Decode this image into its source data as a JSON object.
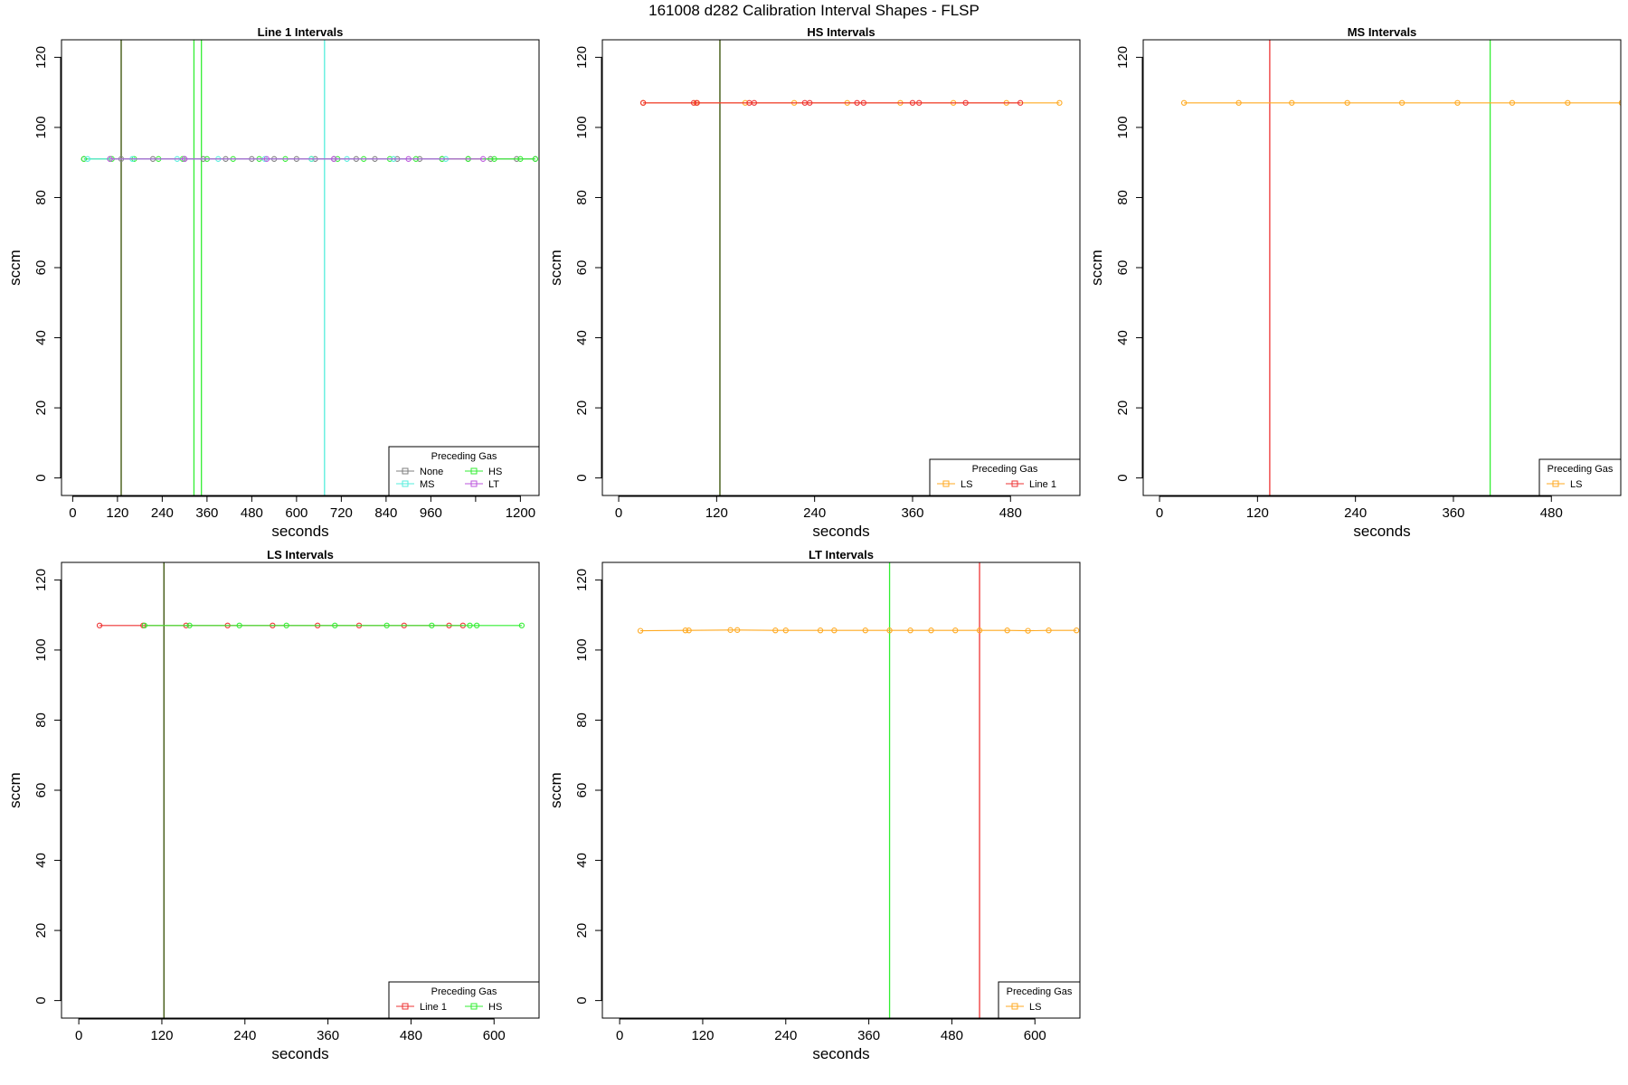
{
  "page": {
    "title": "161008   d282   Calibration Interval Shapes - FLSP"
  },
  "legend_title": "Preceding Gas",
  "colors": {
    "None": "#7f7f7f",
    "HS": "#33ee33",
    "MS": "#55eedd",
    "LT": "#bb55dd",
    "LS": "#ffaa22",
    "Line 1": "#ee3333",
    "dark_vline": "#334d00"
  },
  "chart_data": [
    {
      "type": "line",
      "title": "Line 1 Intervals",
      "xlabel": "seconds",
      "ylabel": "sccm",
      "xlim": [
        -30,
        1250
      ],
      "ylim": [
        -5,
        125
      ],
      "xticks": [
        0,
        120,
        240,
        360,
        480,
        600,
        720,
        840,
        960,
        1080,
        1200
      ],
      "xtick_labels": [
        "0",
        "120",
        "240",
        "360",
        "480",
        "600",
        "720",
        "840",
        "960",
        "",
        "1200"
      ],
      "yticks": [
        0,
        20,
        40,
        60,
        80,
        100,
        120
      ],
      "legend": {
        "entries": [
          "None",
          "HS",
          "MS",
          "LT"
        ],
        "columns": 2
      },
      "vlines": [
        {
          "x": 130,
          "color": "dark_vline"
        },
        {
          "x": 325,
          "color": "HS"
        },
        {
          "x": 345,
          "color": "HS"
        },
        {
          "x": 675,
          "color": "MS"
        }
      ],
      "series": [
        {
          "name": "None",
          "x": [
            30,
            100,
            130,
            215,
            300,
            350,
            410,
            480,
            540,
            600,
            650,
            700,
            760,
            810,
            870,
            930,
            990,
            1060,
            1120,
            1190,
            1240
          ],
          "y": [
            91,
            91,
            91,
            91,
            91,
            91,
            91,
            91,
            91,
            91,
            91,
            91,
            91,
            91,
            91,
            91,
            91,
            91,
            91,
            91,
            91
          ]
        },
        {
          "name": "HS",
          "x": [
            30,
            105,
            165,
            230,
            295,
            360,
            430,
            500,
            570,
            640,
            710,
            780,
            850,
            920,
            990,
            1060,
            1130,
            1200,
            1240
          ],
          "y": [
            91,
            91,
            91,
            91,
            91,
            91,
            91,
            91,
            91,
            91,
            91,
            91,
            91,
            91,
            91,
            91,
            91,
            91,
            91
          ]
        },
        {
          "name": "MS",
          "x": [
            40,
            160,
            280,
            390,
            515,
            640,
            735,
            860,
            1000
          ],
          "y": [
            91,
            91,
            91,
            91,
            91,
            91,
            91,
            91,
            91
          ]
        },
        {
          "name": "LT",
          "x": [
            100,
            300,
            520,
            700,
            900,
            1100
          ],
          "y": [
            91,
            91,
            91,
            91,
            91,
            91
          ]
        }
      ]
    },
    {
      "type": "line",
      "title": "HS Intervals",
      "xlabel": "seconds",
      "ylabel": "sccm",
      "xlim": [
        -20,
        565
      ],
      "ylim": [
        -5,
        125
      ],
      "xticks": [
        0,
        120,
        240,
        360,
        480
      ],
      "xtick_labels": [
        "0",
        "120",
        "240",
        "360",
        "480"
      ],
      "yticks": [
        0,
        20,
        40,
        60,
        80,
        100,
        120
      ],
      "legend": {
        "entries": [
          "LS",
          "Line 1"
        ],
        "columns": 2
      },
      "vlines": [
        {
          "x": 124,
          "color": "dark_vline"
        }
      ],
      "series": [
        {
          "name": "LS",
          "x": [
            30,
            95,
            155,
            215,
            280,
            345,
            410,
            475,
            540
          ],
          "y": [
            107,
            107,
            107,
            107,
            107,
            107,
            107,
            107,
            107
          ]
        },
        {
          "name": "Line 1",
          "x": [
            30,
            92,
            96,
            160,
            166,
            228,
            234,
            292,
            300,
            360,
            368,
            425,
            492
          ],
          "y": [
            107,
            107,
            107,
            107,
            107,
            107,
            107,
            107,
            107,
            107,
            107,
            107,
            107
          ]
        }
      ]
    },
    {
      "type": "line",
      "title": "MS Intervals",
      "xlabel": "seconds",
      "ylabel": "sccm",
      "xlim": [
        -20,
        565
      ],
      "ylim": [
        -5,
        125
      ],
      "xticks": [
        0,
        120,
        240,
        360,
        480
      ],
      "xtick_labels": [
        "0",
        "120",
        "240",
        "360",
        "480"
      ],
      "yticks": [
        0,
        20,
        40,
        60,
        80,
        100,
        120
      ],
      "legend": {
        "entries": [
          "LS"
        ],
        "columns": 1
      },
      "vlines": [
        {
          "x": 135,
          "color": "Line 1"
        },
        {
          "x": 405,
          "color": "HS"
        }
      ],
      "series": [
        {
          "name": "LS",
          "x": [
            30,
            97,
            162,
            230,
            297,
            365,
            432,
            500,
            566
          ],
          "y": [
            107,
            107,
            107,
            107,
            107,
            107,
            107,
            107,
            107
          ]
        }
      ]
    },
    {
      "type": "line",
      "title": "LS Intervals",
      "xlabel": "seconds",
      "ylabel": "sccm",
      "xlim": [
        -25,
        665
      ],
      "ylim": [
        -5,
        125
      ],
      "xticks": [
        0,
        120,
        240,
        360,
        480,
        600
      ],
      "xtick_labels": [
        "0",
        "120",
        "240",
        "360",
        "480",
        "600"
      ],
      "yticks": [
        0,
        20,
        40,
        60,
        80,
        100,
        120
      ],
      "legend": {
        "entries": [
          "Line 1",
          "HS"
        ],
        "columns": 2
      },
      "vlines": [
        {
          "x": 123,
          "color": "dark_vline"
        }
      ],
      "series": [
        {
          "name": "Line 1",
          "x": [
            30,
            93,
            155,
            215,
            280,
            345,
            405,
            470,
            535,
            555
          ],
          "y": [
            107,
            107,
            107,
            107,
            107,
            107,
            107,
            107,
            107,
            107
          ]
        },
        {
          "name": "HS",
          "x": [
            95,
            160,
            232,
            300,
            370,
            445,
            510,
            565,
            575,
            640
          ],
          "y": [
            107,
            107,
            107,
            107,
            107,
            107,
            107,
            107,
            107,
            107
          ]
        }
      ]
    },
    {
      "type": "line",
      "title": "LT Intervals",
      "xlabel": "seconds",
      "ylabel": "sccm",
      "xlim": [
        -25,
        665
      ],
      "ylim": [
        -5,
        125
      ],
      "xticks": [
        0,
        120,
        240,
        360,
        480,
        600
      ],
      "xtick_labels": [
        "0",
        "120",
        "240",
        "360",
        "480",
        "600"
      ],
      "yticks": [
        0,
        20,
        40,
        60,
        80,
        100,
        120
      ],
      "legend": {
        "entries": [
          "LS"
        ],
        "columns": 1
      },
      "vlines": [
        {
          "x": 390,
          "color": "HS"
        },
        {
          "x": 520,
          "color": "Line 1"
        }
      ],
      "series": [
        {
          "name": "LS",
          "x": [
            30,
            95,
            100,
            160,
            170,
            225,
            240,
            290,
            310,
            355,
            390,
            420,
            450,
            485,
            520,
            560,
            590,
            620,
            660
          ],
          "y": [
            105.5,
            105.6,
            105.6,
            105.7,
            105.7,
            105.6,
            105.6,
            105.6,
            105.6,
            105.6,
            105.6,
            105.6,
            105.6,
            105.6,
            105.6,
            105.6,
            105.5,
            105.6,
            105.6
          ]
        }
      ]
    }
  ]
}
